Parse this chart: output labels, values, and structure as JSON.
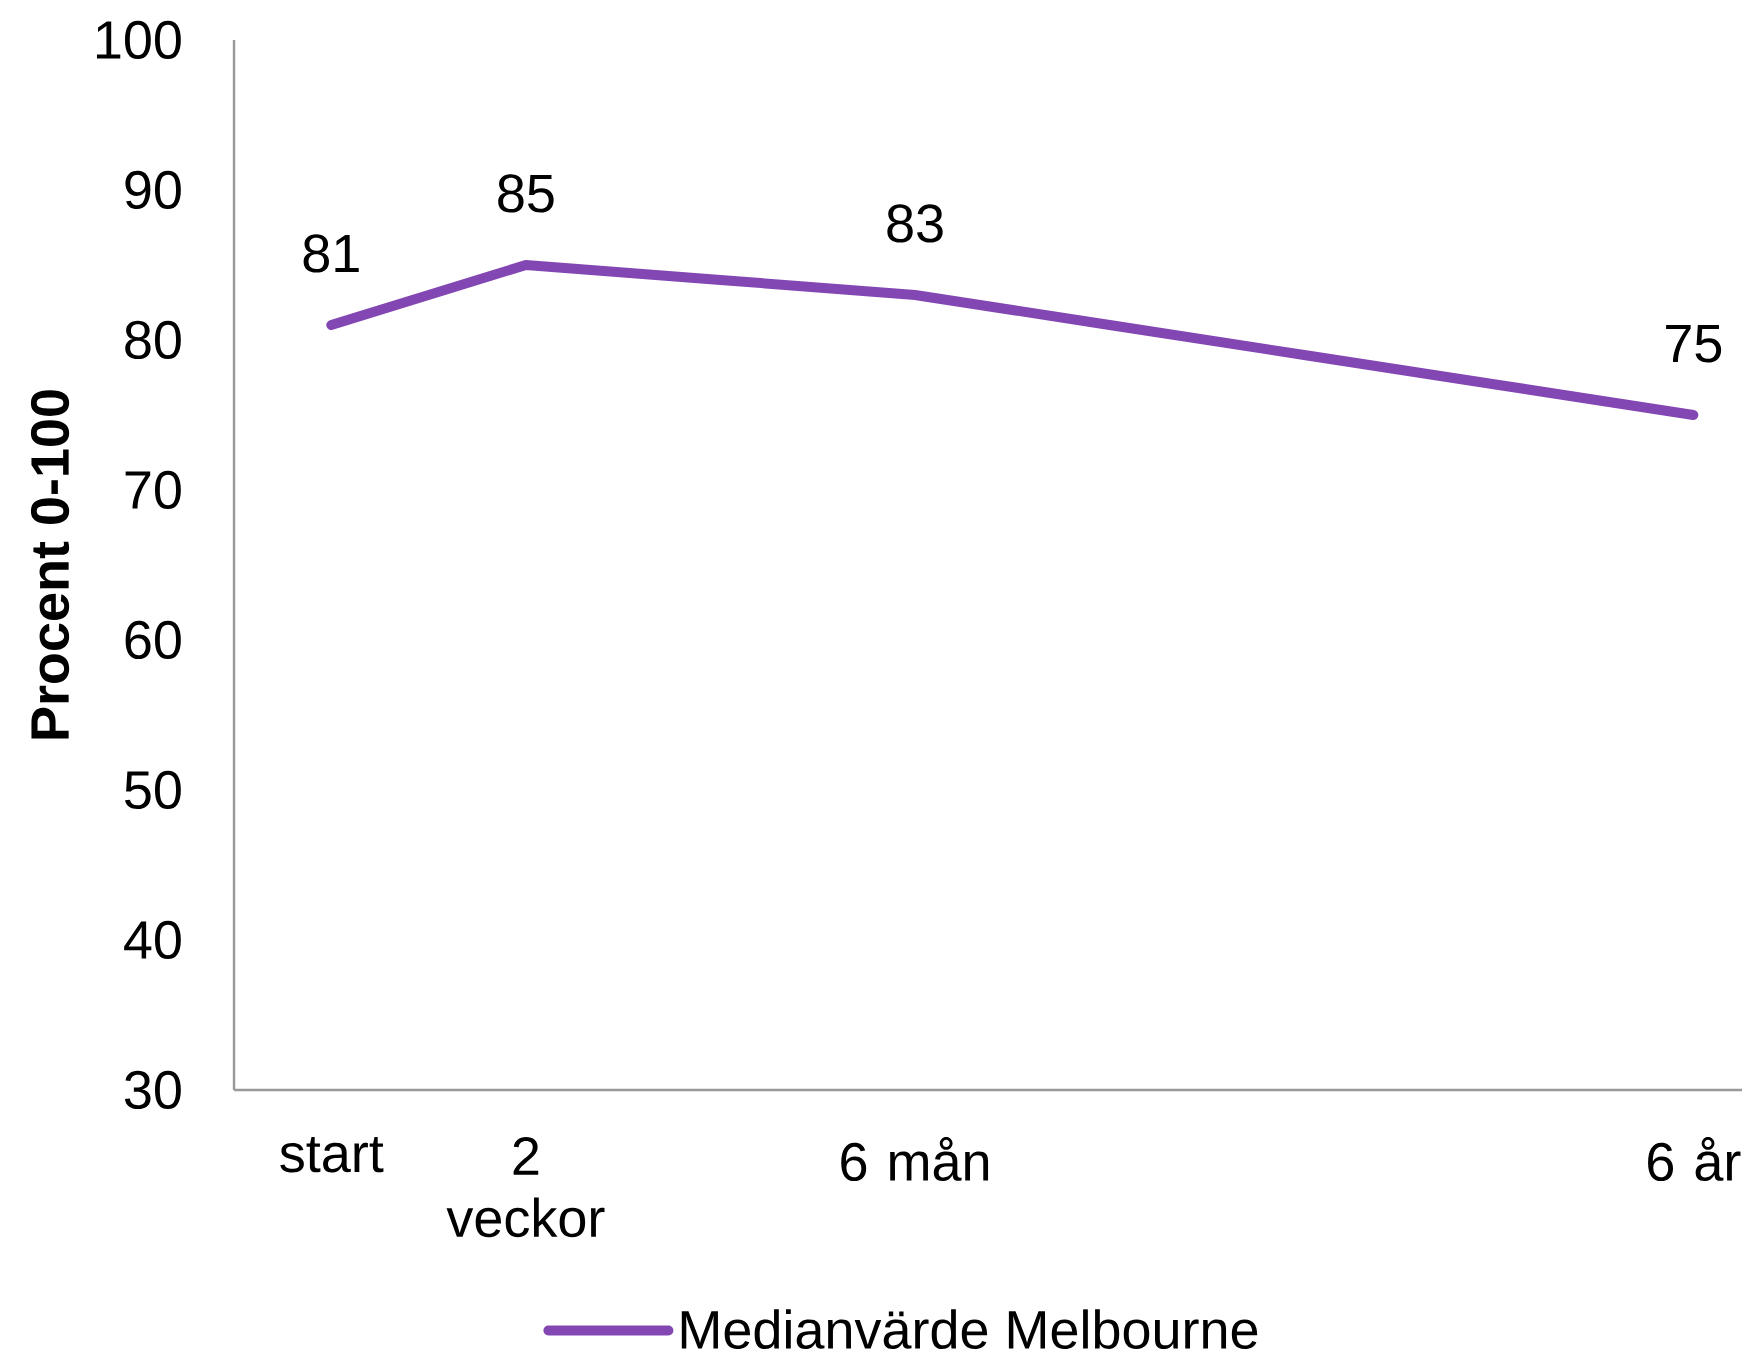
{
  "chart_data": {
    "type": "line",
    "ylabel": "Procent 0-100",
    "categories": [
      "start",
      "2 veckor",
      null,
      "6 mån",
      null,
      null,
      null,
      "6 år"
    ],
    "series": [
      {
        "name": "Medianvärde Melbourne",
        "color": "#8347b3",
        "values": [
          81,
          85,
          84,
          83,
          81,
          79,
          77,
          75
        ],
        "value_labels": [
          "81",
          "85",
          null,
          "83",
          null,
          null,
          null,
          "75"
        ]
      }
    ],
    "ylim": [
      30,
      100
    ],
    "yticks": [
      30,
      40,
      50,
      60,
      70,
      80,
      90,
      100
    ],
    "legend": "bottom",
    "marker": "none",
    "line_style": "solid"
  }
}
